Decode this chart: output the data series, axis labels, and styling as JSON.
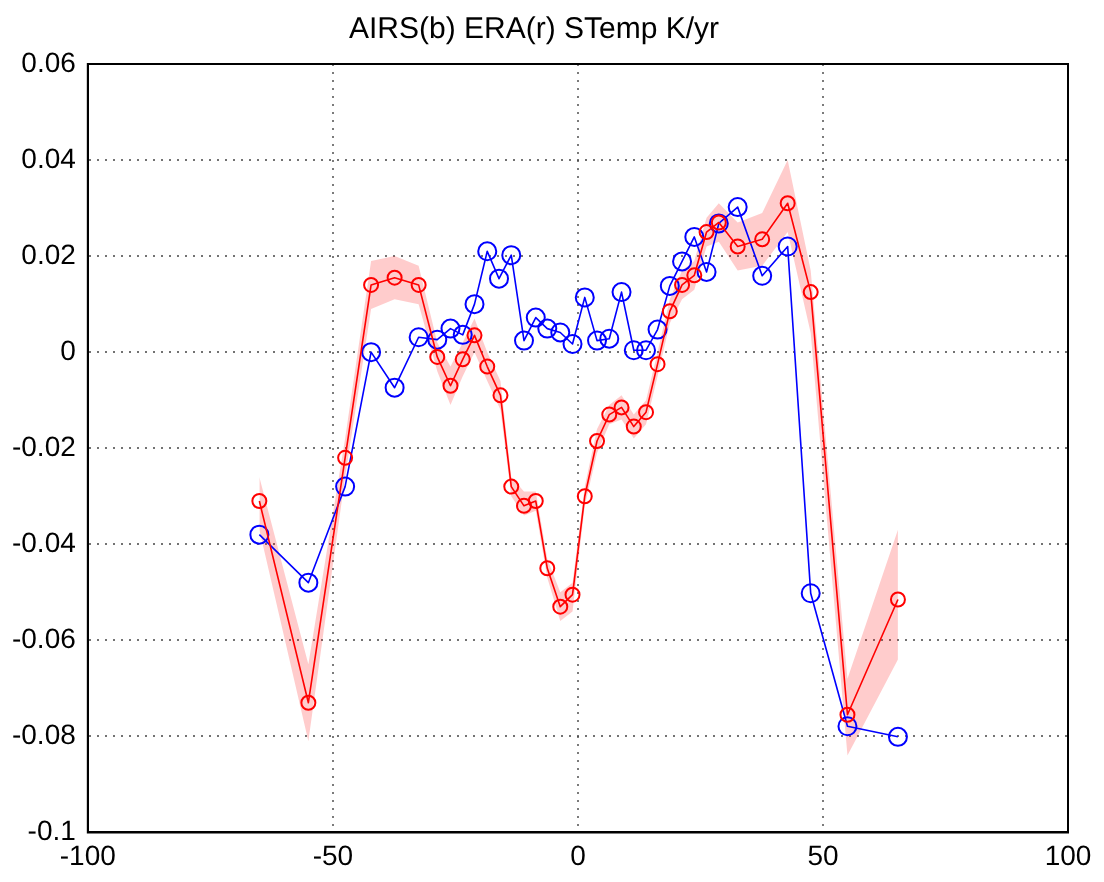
{
  "chart_data": {
    "type": "line",
    "title": "AIRS(b) ERA(r) STemp K/yr",
    "xlim": [
      -100,
      100
    ],
    "xticks": [
      -100,
      -50,
      0,
      50,
      100
    ],
    "ylim": [
      -0.1,
      0.06
    ],
    "yticks": [
      -0.1,
      -0.08,
      -0.06,
      -0.04,
      -0.02,
      0,
      0.02,
      0.04,
      0.06
    ],
    "grid": true,
    "legend": false,
    "marker": "circle",
    "line_style": "solid",
    "series": [
      {
        "color": "#ff0000",
        "x": [
          -65,
          -55,
          -47.5,
          -42.2,
          -37.4,
          -32.5,
          -28.7,
          -26,
          -23.5,
          -21.1,
          -18.5,
          -15.8,
          -13.6,
          -11,
          -8.6,
          -6.25,
          -3.6,
          -1.1,
          1.4,
          3.9,
          6.4,
          8.9,
          11.4,
          13.9,
          16.25,
          18.75,
          21.25,
          23.75,
          26.25,
          28.75,
          32.6,
          37.6,
          42.8,
          47.5,
          55,
          65.3
        ],
        "values": [
          -0.031,
          -0.073,
          -0.022,
          0.014,
          0.0155,
          0.014,
          -0.001,
          -0.007,
          -0.0015,
          0.0035,
          -0.003,
          -0.009,
          -0.028,
          -0.032,
          -0.031,
          -0.045,
          -0.053,
          -0.0505,
          -0.03,
          -0.0185,
          -0.013,
          -0.0115,
          -0.0155,
          -0.0125,
          -0.0025,
          0.0085,
          0.014,
          0.016,
          0.025,
          0.027,
          0.022,
          0.0235,
          0.031,
          0.0125,
          -0.0755,
          -0.0515
        ],
        "lower": [
          -0.037,
          -0.081,
          -0.026,
          0.009,
          0.011,
          0.01,
          -0.004,
          -0.011,
          -0.005,
          0,
          -0.006,
          -0.012,
          -0.03,
          -0.034,
          -0.033,
          -0.047,
          -0.056,
          -0.054,
          -0.032,
          -0.021,
          -0.015,
          -0.014,
          -0.018,
          -0.015,
          -0.005,
          0.006,
          0.011,
          0.013,
          0.022,
          0.023,
          0.017,
          0.018,
          0.025,
          0.004,
          -0.084,
          -0.064
        ],
        "upper": [
          -0.026,
          -0.065,
          -0.018,
          0.019,
          0.02,
          0.018,
          0.002,
          -0.003,
          0.002,
          0.007,
          0,
          -0.006,
          -0.026,
          -0.029,
          -0.029,
          -0.043,
          -0.05,
          -0.048,
          -0.028,
          -0.016,
          -0.011,
          -0.009,
          -0.013,
          -0.01,
          0,
          0.011,
          0.017,
          0.019,
          0.028,
          0.031,
          0.027,
          0.029,
          0.04,
          0.017,
          -0.068,
          -0.037
        ]
      },
      {
        "color": "#0000ff",
        "x": [
          -65,
          -55,
          -47.5,
          -42.2,
          -37.4,
          -32.5,
          -28.7,
          -26,
          -23.5,
          -21.1,
          -18.5,
          -16.1,
          -13.6,
          -11,
          -8.6,
          -6.25,
          -3.6,
          -1.1,
          1.4,
          3.9,
          6.4,
          8.9,
          11.4,
          13.9,
          16.25,
          18.75,
          21.25,
          23.75,
          26.25,
          28.75,
          32.6,
          37.6,
          42.8,
          47.5,
          55,
          65.3
        ],
        "values": [
          -0.038,
          -0.048,
          -0.028,
          0,
          -0.0074,
          0.0031,
          0.0026,
          0.0049,
          0.0036,
          0.01,
          0.021,
          0.0153,
          0.0202,
          0.0024,
          0.0072,
          0.0049,
          0.0041,
          0.0017,
          0.0114,
          0.0024,
          0.0028,
          0.0125,
          0.0004,
          0.0004,
          0.0047,
          0.0138,
          0.0189,
          0.024,
          0.0167,
          0.0268,
          0.0302,
          0.0159,
          0.022,
          -0.0502,
          -0.0779,
          -0.0801
        ]
      }
    ]
  }
}
